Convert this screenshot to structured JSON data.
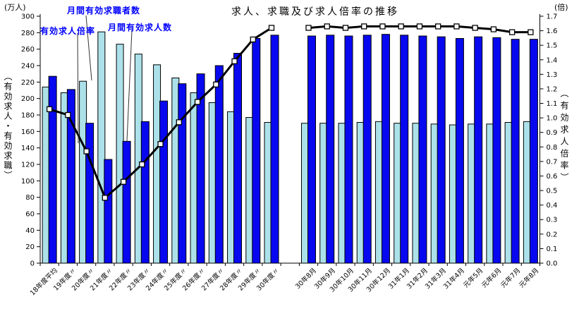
{
  "title": "求人、求職及び求人倍率の推移",
  "units": {
    "left": "(万人)",
    "right": "(倍)"
  },
  "axis_titles": {
    "left": "（有効求人・有効求職）",
    "right": "（有効求人倍率）"
  },
  "annotations": {
    "seekers": "月間有効求職者数",
    "ratio": "有効求人倍率",
    "offers": "月間有効求人数",
    "label_color": "#0000FF"
  },
  "colors": {
    "seekers_bar": "#ACE1EA",
    "offers_bar": "#0808F0",
    "bar_border": "#000000",
    "ratio_line": "#000000",
    "marker_fill": "#FFFFFF"
  },
  "chart_data": {
    "type": "bar",
    "subtype": "grouped bars with overlaid line (dual axis combo)",
    "grid": false,
    "legend_position": "callout annotations with leader lines, top-left",
    "left_axis": {
      "label": "(万人)",
      "min": 0,
      "max": 300,
      "step": 20
    },
    "right_axis": {
      "label": "(倍)",
      "min": 0.0,
      "max": 1.7,
      "step": 0.1
    },
    "series_names": {
      "seekers": "月間有効求職者数",
      "offers": "月間有効求人数",
      "ratio": "有効求人倍率"
    },
    "sections": [
      {
        "name": "annual",
        "categories": [
          "18年度平均",
          "19年度〃",
          "20年度〃",
          "21年度〃",
          "22年度〃",
          "23年度〃",
          "24年度〃",
          "25年度〃",
          "26年度〃",
          "27年度〃",
          "28年度〃",
          "29年度〃",
          "30年度〃"
        ],
        "seekers": [
          214,
          207,
          221,
          281,
          266,
          254,
          241,
          225,
          207,
          195,
          184,
          177,
          171
        ],
        "offers": [
          227,
          211,
          170,
          126,
          148,
          172,
          197,
          218,
          230,
          240,
          255,
          273,
          277
        ],
        "ratio": [
          1.06,
          1.02,
          0.77,
          0.45,
          0.56,
          0.68,
          0.82,
          0.97,
          1.11,
          1.23,
          1.39,
          1.54,
          1.62
        ]
      },
      {
        "name": "monthly",
        "categories": [
          "30年8月",
          "30年9月",
          "30年10月",
          "30年11月",
          "30年12月",
          "31年1月",
          "31年2月",
          "31年3月",
          "31年4月",
          "元年5月",
          "元年6月",
          "元年7月",
          "元年8月"
        ],
        "seekers": [
          170,
          170,
          170,
          171,
          172,
          170,
          170,
          169,
          168,
          169,
          169,
          171,
          172
        ],
        "offers": [
          276,
          277,
          276,
          277,
          278,
          277,
          276,
          275,
          273,
          275,
          274,
          272,
          272
        ],
        "ratio": [
          1.62,
          1.63,
          1.62,
          1.63,
          1.63,
          1.63,
          1.63,
          1.63,
          1.63,
          1.62,
          1.61,
          1.59,
          1.59
        ]
      }
    ],
    "gap_slot_between_sections": 1
  }
}
